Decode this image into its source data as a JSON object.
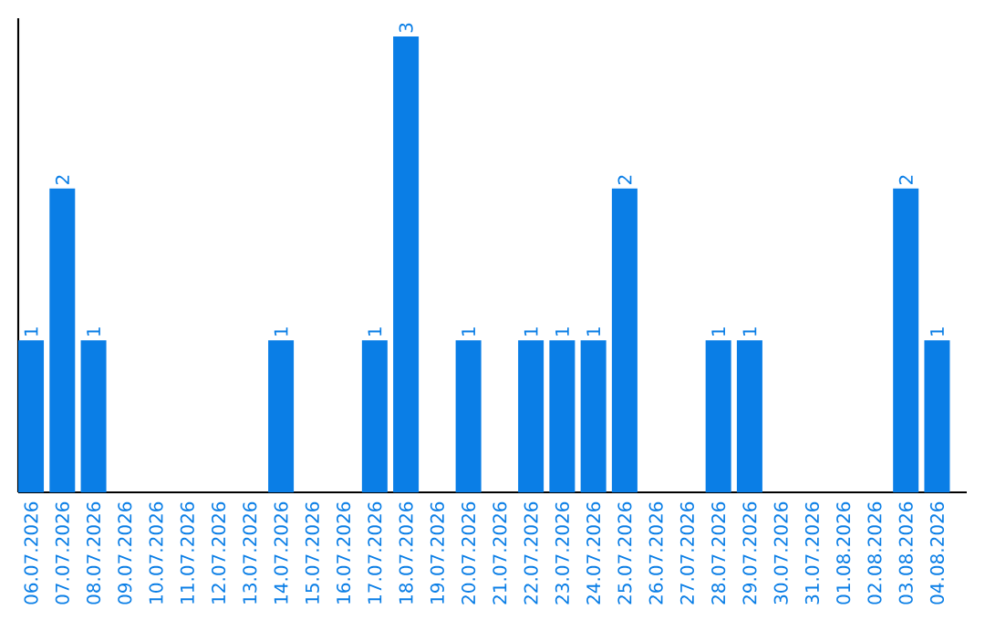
{
  "chart_data": {
    "type": "bar",
    "relative": false,
    "categories": [
      "06.07.2026",
      "07.07.2026",
      "08.07.2026",
      "09.07.2026",
      "10.07.2026",
      "11.07.2026",
      "12.07.2026",
      "13.07.2026",
      "14.07.2026",
      "15.07.2026",
      "16.07.2026",
      "17.07.2026",
      "18.07.2026",
      "19.07.2026",
      "20.07.2026",
      "21.07.2026",
      "22.07.2026",
      "23.07.2026",
      "24.07.2026",
      "25.07.2026",
      "26.07.2026",
      "27.07.2026",
      "28.07.2026",
      "29.07.2026",
      "30.07.2026",
      "31.07.2026",
      "01.08.2026",
      "02.08.2026",
      "03.08.2026",
      "04.08.2026"
    ],
    "values": [
      1,
      2,
      1,
      0,
      0,
      0,
      0,
      0,
      1,
      0,
      0,
      1,
      3,
      0,
      1,
      0,
      1,
      1,
      1,
      2,
      0,
      0,
      1,
      1,
      0,
      0,
      0,
      0,
      2,
      1
    ],
    "value_labels": [
      "1",
      "2",
      "1",
      null,
      null,
      null,
      null,
      null,
      "1",
      null,
      null,
      "1",
      "3",
      null,
      "1",
      null,
      "1",
      "1",
      "1",
      "2",
      null,
      null,
      "1",
      "1",
      null,
      null,
      null,
      null,
      "2",
      "1"
    ],
    "color": "#0a7ee6"
  }
}
